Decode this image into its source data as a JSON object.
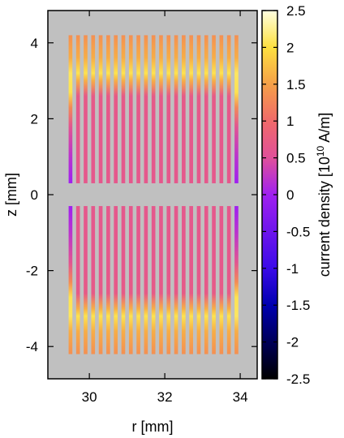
{
  "chart_data": {
    "type": "heatmap",
    "title": "",
    "xlabel": "r [mm]",
    "ylabel": "z [mm]",
    "xlim": [
      28.9,
      34.45
    ],
    "ylim": [
      -4.85,
      4.85
    ],
    "x_ticks": [
      30,
      32,
      34
    ],
    "y_ticks": [
      -4,
      -2,
      0,
      2,
      4
    ],
    "x_tick_labels": [
      "30",
      "32",
      "34"
    ],
    "y_tick_labels": [
      "-4",
      "-2",
      "0",
      "2",
      "4"
    ],
    "background_color": "#c0c0c0",
    "colorbar": {
      "label_base": "current density [10",
      "label_exp": "10",
      "label_unit": " A/m]",
      "range": [
        -2.5,
        2.5
      ],
      "ticks": [
        2.5,
        2,
        1.5,
        1,
        0.5,
        0,
        -0.5,
        -1,
        -1.5,
        -2,
        -2.5
      ],
      "tick_labels": [
        "2.5",
        "2",
        "1.5",
        "1",
        "0.5",
        "0",
        "-0.5",
        "-1",
        "-1.5",
        "-2",
        "-2.5"
      ],
      "colormap": [
        {
          "v": -2.5,
          "color": "#000000"
        },
        {
          "v": -1.5,
          "color": "#0000b0"
        },
        {
          "v": -1.0,
          "color": "#3b0ae8"
        },
        {
          "v": 0.0,
          "color": "#a020f0"
        },
        {
          "v": 0.5,
          "color": "#e0509a"
        },
        {
          "v": 1.0,
          "color": "#f06a6a"
        },
        {
          "v": 1.5,
          "color": "#f5a048"
        },
        {
          "v": 2.0,
          "color": "#fde040"
        },
        {
          "v": 2.5,
          "color": "#ffffe0"
        }
      ]
    },
    "strips": {
      "count": 23,
      "r_start": 29.5,
      "r_end": 33.9,
      "z_extent": [
        -4.2,
        4.2
      ],
      "gap": [
        -0.3,
        0.3
      ],
      "z_profile": [
        {
          "z": 0.3,
          "value": 0.65
        },
        {
          "z": 2.0,
          "value": 0.65
        },
        {
          "z": 2.6,
          "value": 0.7
        },
        {
          "z": 3.0,
          "value": 1.6
        },
        {
          "z": 3.2,
          "value": 2.05
        },
        {
          "z": 3.6,
          "value": 1.6
        },
        {
          "z": 4.2,
          "value": 1.35
        }
      ],
      "edge_profile": [
        {
          "z": 0.3,
          "value": 0.0
        },
        {
          "z": 1.0,
          "value": 0.2
        },
        {
          "z": 1.8,
          "value": 0.6
        },
        {
          "z": 2.3,
          "value": 1.3
        },
        {
          "z": 2.7,
          "value": 2.05
        },
        {
          "z": 3.2,
          "value": 2.1
        },
        {
          "z": 3.6,
          "value": 1.6
        },
        {
          "z": 4.2,
          "value": 1.35
        }
      ]
    }
  }
}
